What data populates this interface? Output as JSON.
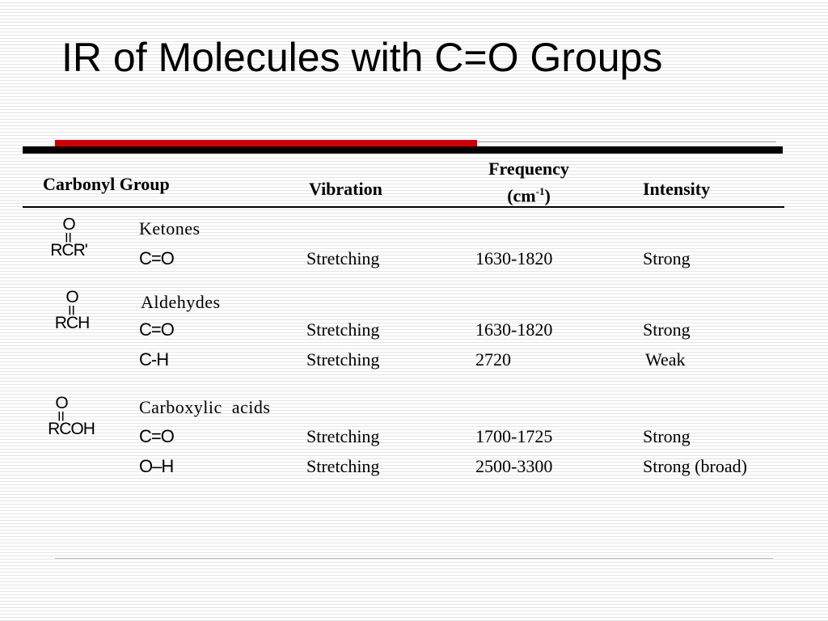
{
  "slide": {
    "title": "IR of Molecules with C=O Groups"
  },
  "table": {
    "headers": {
      "group": "Carbonyl Group",
      "vibration": "Vibration",
      "frequency_line1": "Frequency",
      "frequency_line2_pre": "(cm",
      "frequency_sup": "-1",
      "frequency_line2_post": ")",
      "intensity": "Intensity"
    },
    "sections": [
      {
        "structure": {
          "top": "O",
          "bond": "||",
          "formula": "RCR'"
        },
        "name": "Ketones",
        "rows": [
          {
            "bond": "C=O",
            "vibration": "Stretching",
            "frequency": "1630-1820",
            "intensity": "Strong"
          }
        ]
      },
      {
        "structure": {
          "top": "O",
          "bond": "||",
          "formula": "RCH"
        },
        "name": "Aldehydes",
        "rows": [
          {
            "bond": "C=O",
            "vibration": "Stretching",
            "frequency": "1630-1820",
            "intensity": "Strong"
          },
          {
            "bond": "C-H",
            "vibration": "Stretching",
            "frequency": "2720",
            "intensity": "Weak"
          }
        ]
      },
      {
        "structure": {
          "top": "O",
          "bond": "||",
          "formula": "RCOH"
        },
        "name": "Carboxylic  acids",
        "rows": [
          {
            "bond": "C=O",
            "vibration": "Stretching",
            "frequency": "1700-1725",
            "intensity": "Strong"
          },
          {
            "bond": "O–H",
            "vibration": "Stretching",
            "frequency": "2500-3300",
            "intensity": "Strong (broad)"
          }
        ]
      }
    ]
  },
  "colors": {
    "accent_red": "#cc0000",
    "rule_black": "#000000"
  }
}
